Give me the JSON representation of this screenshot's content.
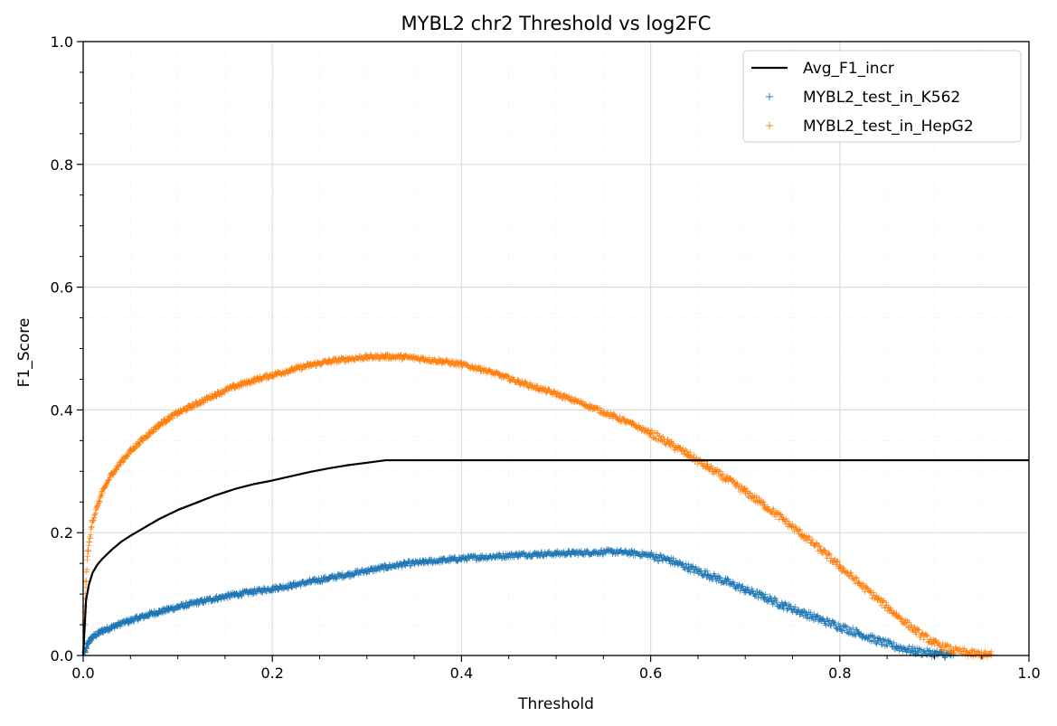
{
  "chart_data": {
    "type": "scatter",
    "title": "MYBL2 chr2 Threshold vs log2FC",
    "xlabel": "Threshold",
    "ylabel": "F1_Score",
    "xlim": [
      0,
      1
    ],
    "ylim": [
      0,
      1
    ],
    "xticks": [
      "0.0",
      "0.2",
      "0.4",
      "0.6",
      "0.8",
      "1.0"
    ],
    "yticks": [
      "0.0",
      "0.2",
      "0.4",
      "0.6",
      "0.8",
      "1.0"
    ],
    "grid": true,
    "minor_grid": true,
    "legend_position": "top-right",
    "series": [
      {
        "name": "Avg_F1_incr",
        "kind": "line",
        "color": "#000000",
        "x": [
          0.0,
          0.003,
          0.006,
          0.01,
          0.015,
          0.02,
          0.03,
          0.04,
          0.05,
          0.06,
          0.08,
          0.1,
          0.12,
          0.14,
          0.16,
          0.18,
          0.2,
          0.22,
          0.24,
          0.26,
          0.28,
          0.3,
          0.31,
          0.32,
          0.35,
          0.4,
          0.5,
          0.6,
          0.7,
          0.8,
          0.9,
          1.0
        ],
        "y": [
          0.0,
          0.09,
          0.115,
          0.135,
          0.148,
          0.157,
          0.172,
          0.185,
          0.195,
          0.204,
          0.222,
          0.237,
          0.249,
          0.261,
          0.271,
          0.279,
          0.285,
          0.292,
          0.299,
          0.305,
          0.31,
          0.314,
          0.316,
          0.318,
          0.318,
          0.318,
          0.318,
          0.318,
          0.318,
          0.318,
          0.318,
          0.318
        ]
      },
      {
        "name": "MYBL2_test_in_K562",
        "kind": "scatter",
        "marker": "+",
        "color": "#1f77b4",
        "x": [
          0.002,
          0.005,
          0.01,
          0.02,
          0.03,
          0.04,
          0.05,
          0.06,
          0.07,
          0.08,
          0.09,
          0.1,
          0.12,
          0.14,
          0.16,
          0.18,
          0.2,
          0.22,
          0.24,
          0.26,
          0.28,
          0.3,
          0.32,
          0.34,
          0.36,
          0.38,
          0.4,
          0.42,
          0.44,
          0.46,
          0.48,
          0.5,
          0.52,
          0.54,
          0.56,
          0.58,
          0.6,
          0.62,
          0.64,
          0.66,
          0.68,
          0.7,
          0.72,
          0.74,
          0.76,
          0.78,
          0.8,
          0.82,
          0.84,
          0.86,
          0.88,
          0.9,
          0.92
        ],
        "y": [
          0.005,
          0.02,
          0.03,
          0.04,
          0.046,
          0.052,
          0.057,
          0.062,
          0.067,
          0.071,
          0.075,
          0.079,
          0.086,
          0.093,
          0.099,
          0.104,
          0.109,
          0.114,
          0.12,
          0.126,
          0.132,
          0.138,
          0.144,
          0.149,
          0.152,
          0.155,
          0.158,
          0.16,
          0.162,
          0.164,
          0.165,
          0.166,
          0.167,
          0.168,
          0.169,
          0.167,
          0.163,
          0.155,
          0.143,
          0.132,
          0.12,
          0.107,
          0.095,
          0.082,
          0.07,
          0.058,
          0.047,
          0.036,
          0.024,
          0.014,
          0.007,
          0.003,
          0.001
        ]
      },
      {
        "name": "MYBL2_test_in_HepG2",
        "kind": "scatter",
        "marker": "+",
        "color": "#ff7f0e",
        "x": [
          0.001,
          0.003,
          0.005,
          0.01,
          0.02,
          0.03,
          0.04,
          0.05,
          0.06,
          0.07,
          0.08,
          0.09,
          0.1,
          0.12,
          0.14,
          0.16,
          0.18,
          0.2,
          0.22,
          0.24,
          0.26,
          0.28,
          0.3,
          0.32,
          0.34,
          0.36,
          0.38,
          0.4,
          0.42,
          0.44,
          0.46,
          0.48,
          0.5,
          0.52,
          0.54,
          0.56,
          0.58,
          0.6,
          0.62,
          0.64,
          0.66,
          0.68,
          0.7,
          0.72,
          0.74,
          0.76,
          0.78,
          0.8,
          0.82,
          0.84,
          0.86,
          0.88,
          0.9,
          0.92,
          0.94,
          0.96
        ],
        "y": [
          0.05,
          0.12,
          0.17,
          0.22,
          0.265,
          0.295,
          0.315,
          0.333,
          0.348,
          0.362,
          0.375,
          0.386,
          0.395,
          0.41,
          0.425,
          0.438,
          0.448,
          0.457,
          0.465,
          0.473,
          0.479,
          0.483,
          0.486,
          0.487,
          0.486,
          0.483,
          0.479,
          0.474,
          0.467,
          0.457,
          0.446,
          0.436,
          0.426,
          0.415,
          0.403,
          0.39,
          0.377,
          0.362,
          0.345,
          0.327,
          0.307,
          0.288,
          0.267,
          0.245,
          0.222,
          0.197,
          0.172,
          0.145,
          0.118,
          0.092,
          0.066,
          0.04,
          0.02,
          0.008,
          0.003,
          0.001
        ]
      }
    ]
  }
}
